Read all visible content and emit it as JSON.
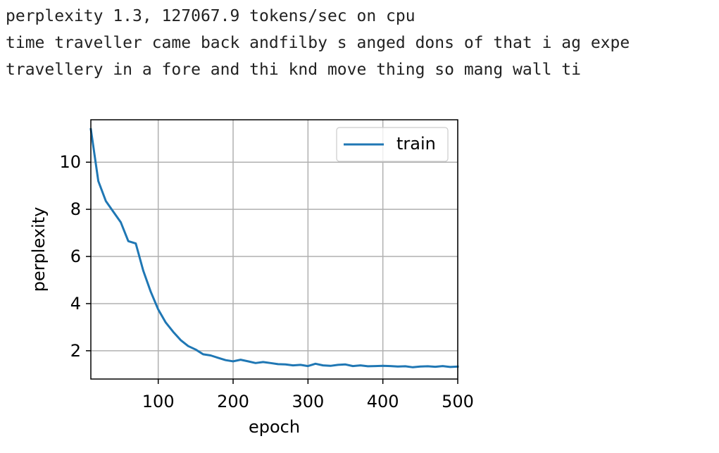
{
  "output_log": [
    "perplexity 1.3, 127067.9 tokens/sec on cpu",
    "time traveller came back andfilby s anged dons of that i ag expe",
    "travellery in a fore and thi knd move thing so mang wall ti"
  ],
  "chart_data": {
    "type": "line",
    "title": "",
    "xlabel": "epoch",
    "ylabel": "perplexity",
    "xlim": [
      10,
      500
    ],
    "ylim": [
      0.8,
      11.8
    ],
    "xticks": [
      100,
      200,
      300,
      400,
      500
    ],
    "yticks": [
      2,
      4,
      6,
      8,
      10
    ],
    "grid": true,
    "legend_position": "top-right",
    "series": [
      {
        "name": "train",
        "color": "#1f77b4",
        "x": [
          10,
          20,
          30,
          40,
          50,
          60,
          70,
          80,
          90,
          100,
          110,
          120,
          130,
          140,
          150,
          160,
          170,
          180,
          190,
          200,
          210,
          220,
          230,
          240,
          250,
          260,
          270,
          280,
          290,
          300,
          310,
          320,
          330,
          340,
          350,
          360,
          370,
          380,
          390,
          400,
          410,
          420,
          430,
          440,
          450,
          460,
          470,
          480,
          490,
          500
        ],
        "y": [
          11.4,
          9.2,
          8.35,
          7.9,
          7.45,
          6.65,
          6.55,
          5.4,
          4.5,
          3.75,
          3.2,
          2.8,
          2.45,
          2.2,
          2.05,
          1.85,
          1.8,
          1.7,
          1.6,
          1.55,
          1.62,
          1.55,
          1.48,
          1.52,
          1.48,
          1.43,
          1.42,
          1.38,
          1.4,
          1.35,
          1.45,
          1.38,
          1.36,
          1.4,
          1.42,
          1.35,
          1.38,
          1.34,
          1.35,
          1.36,
          1.35,
          1.33,
          1.34,
          1.3,
          1.33,
          1.34,
          1.32,
          1.35,
          1.31,
          1.33
        ]
      }
    ]
  }
}
